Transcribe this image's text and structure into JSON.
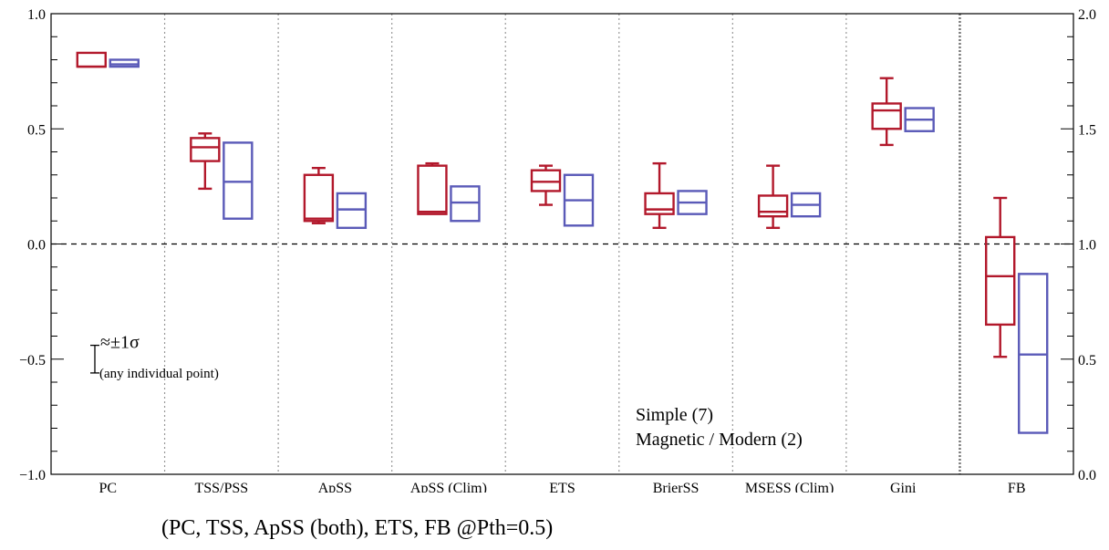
{
  "chart_data": {
    "type": "box",
    "categories": [
      "PC",
      "TSS/PSS",
      "ApSS",
      "ApSS (Clim)",
      "ETS",
      "BrierSS",
      "MSESS (Clim)",
      "Gini",
      "FB"
    ],
    "y_left": {
      "range": [
        -1.0,
        1.0
      ],
      "tick_labels": [
        "1.0",
        "0.5",
        "0.0",
        "−0.5",
        "−1.0"
      ]
    },
    "y_right": {
      "range": [
        0.0,
        2.0
      ],
      "tick_labels": [
        "2.0",
        "1.5",
        "1.0",
        "0.5",
        "0.0"
      ],
      "applies_to": "FB"
    },
    "zero_line": true,
    "series": [
      {
        "name": "Simple (7)",
        "color": "#b2182b",
        "boxes": [
          {
            "category": "PC",
            "whisker_low": 0.77,
            "q1": 0.77,
            "median": 0.77,
            "q3": 0.83,
            "whisker_high": 0.83
          },
          {
            "category": "TSS/PSS",
            "whisker_low": 0.24,
            "q1": 0.36,
            "median": 0.42,
            "q3": 0.46,
            "whisker_high": 0.48
          },
          {
            "category": "ApSS",
            "whisker_low": 0.09,
            "q1": 0.1,
            "median": 0.11,
            "q3": 0.3,
            "whisker_high": 0.33
          },
          {
            "category": "ApSS (Clim)",
            "whisker_low": 0.13,
            "q1": 0.13,
            "median": 0.14,
            "q3": 0.34,
            "whisker_high": 0.35
          },
          {
            "category": "ETS",
            "whisker_low": 0.17,
            "q1": 0.23,
            "median": 0.27,
            "q3": 0.32,
            "whisker_high": 0.34
          },
          {
            "category": "BrierSS",
            "whisker_low": 0.07,
            "q1": 0.13,
            "median": 0.15,
            "q3": 0.22,
            "whisker_high": 0.35
          },
          {
            "category": "MSESS (Clim)",
            "whisker_low": 0.07,
            "q1": 0.12,
            "median": 0.14,
            "q3": 0.21,
            "whisker_high": 0.34
          },
          {
            "category": "Gini",
            "whisker_low": 0.43,
            "q1": 0.5,
            "median": 0.58,
            "q3": 0.61,
            "whisker_high": 0.72
          },
          {
            "category": "FB",
            "whisker_low": -0.49,
            "q1": -0.35,
            "median": -0.14,
            "q3": 0.03,
            "whisker_high": 0.2
          }
        ]
      },
      {
        "name": "Magnetic / Modern (2)",
        "color": "#5a5ab8",
        "boxes": [
          {
            "category": "PC",
            "whisker_low": 0.77,
            "q1": 0.77,
            "median": 0.78,
            "q3": 0.8,
            "whisker_high": 0.8
          },
          {
            "category": "TSS/PSS",
            "whisker_low": 0.11,
            "q1": 0.11,
            "median": 0.27,
            "q3": 0.44,
            "whisker_high": 0.44
          },
          {
            "category": "ApSS",
            "whisker_low": 0.07,
            "q1": 0.07,
            "median": 0.15,
            "q3": 0.22,
            "whisker_high": 0.22
          },
          {
            "category": "ApSS (Clim)",
            "whisker_low": 0.1,
            "q1": 0.1,
            "median": 0.18,
            "q3": 0.25,
            "whisker_high": 0.25
          },
          {
            "category": "ETS",
            "whisker_low": 0.08,
            "q1": 0.08,
            "median": 0.19,
            "q3": 0.3,
            "whisker_high": 0.3
          },
          {
            "category": "BrierSS",
            "whisker_low": 0.13,
            "q1": 0.13,
            "median": 0.18,
            "q3": 0.23,
            "whisker_high": 0.23
          },
          {
            "category": "MSESS (Clim)",
            "whisker_low": 0.12,
            "q1": 0.12,
            "median": 0.17,
            "q3": 0.22,
            "whisker_high": 0.22
          },
          {
            "category": "Gini",
            "whisker_low": 0.49,
            "q1": 0.49,
            "median": 0.54,
            "q3": 0.59,
            "whisker_high": 0.59
          },
          {
            "category": "FB",
            "whisker_low": -0.82,
            "q1": -0.82,
            "median": -0.48,
            "q3": -0.13,
            "whisker_high": -0.13
          }
        ]
      }
    ],
    "error_note": {
      "sigma_label": "≈±1σ",
      "text": "(any individual point)",
      "half_height": 0.06,
      "center": -0.5
    },
    "legend": {
      "placement": "bottom-right",
      "entries": [
        "Simple (7)",
        "Magnetic / Modern (2)"
      ]
    },
    "caption": "(PC, TSS, ApSS (both), ETS, FB @Pth=0.5)"
  }
}
